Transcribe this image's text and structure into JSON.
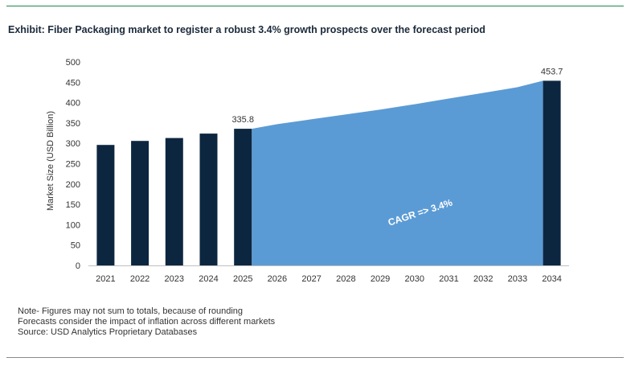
{
  "title": "Exhibit: Fiber Packaging market to register a robust 3.4% growth prospects over the forecast period",
  "notes": [
    "Note- Figures may not sum to totals, because of rounding",
    "Forecasts consider the impact of inflation across different markets",
    "Source: USD Analytics Proprietary Databases"
  ],
  "colors": {
    "bar": "#0d2640",
    "area": "#5b9bd5",
    "title_rule": "#1a8a4c"
  },
  "chart_data": {
    "type": "bar",
    "categories": [
      "2021",
      "2022",
      "2023",
      "2024",
      "2025",
      "2026",
      "2027",
      "2028",
      "2029",
      "2030",
      "2031",
      "2032",
      "2033",
      "2034"
    ],
    "series": [
      {
        "values": [
          296,
          306,
          313,
          324,
          335.8,
          null,
          null,
          null,
          null,
          null,
          null,
          null,
          null,
          453.7
        ]
      }
    ],
    "area_series": {
      "values": [
        null,
        null,
        null,
        null,
        335.8,
        347,
        359,
        371,
        383,
        396,
        410,
        424,
        438,
        453.7
      ]
    },
    "data_labels": [
      {
        "category": "2025",
        "text": "335.8"
      },
      {
        "category": "2034",
        "text": "453.7"
      }
    ],
    "annotation": "CAGR => 3.4%",
    "ylabel": "Market Size (USD Billion)",
    "xlabel": "",
    "ylim": [
      0,
      500
    ],
    "yticks": [
      0,
      50,
      100,
      150,
      200,
      250,
      300,
      350,
      400,
      450,
      500
    ],
    "grid": false,
    "legend": "none"
  }
}
